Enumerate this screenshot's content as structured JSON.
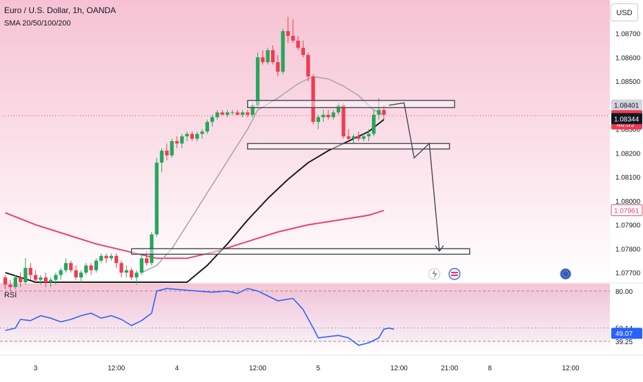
{
  "header": {
    "title": "Euro / U.S. Dollar, 1h, OANDA",
    "indicator": "SMA 20/50/100/200"
  },
  "currency_button": "USD",
  "rsi": {
    "label": "RSI"
  },
  "colors": {
    "background_top": "#f8c9d8",
    "background_mid": "#fbe3eb",
    "bull": "#26a65b",
    "bear": "#f23b52",
    "sma_gray": "#a8a8a8",
    "sma_black": "#1b1b1b",
    "sma_red": "#e8416a",
    "rsi_line": "#2962ff",
    "drawing": "#434651"
  },
  "chart_data": [
    {
      "type": "candlestick",
      "title": "Euro / U.S. Dollar, 1h, OANDA",
      "ylim": [
        1.0766,
        1.0884
      ],
      "y_ticks": [
        1.077,
        1.078,
        1.079,
        1.08,
        1.081,
        1.082,
        1.083,
        1.084,
        1.085,
        1.086,
        1.087
      ],
      "y_tick_labels": [
        "1.07700",
        "1.07800",
        "1.07900",
        "1.08000",
        "1.08100",
        "1.08200",
        "1.08300",
        "1.08400",
        "1.08500",
        "1.08600",
        "1.08700"
      ],
      "x_tick_labels": [
        "3",
        "12:00",
        "4",
        "12:00",
        "5",
        "12:00",
        "21:00",
        "8",
        "12:00"
      ],
      "x_tick_bars": [
        6,
        22,
        34,
        50,
        62,
        78,
        88,
        96,
        112
      ],
      "bar_count": 120,
      "price_labels": [
        {
          "value": 1.08401,
          "text": "1.08401",
          "kind": "gray"
        },
        {
          "value": 1.08356,
          "text": "1.08356",
          "kind": "bear",
          "countdown": "46:05"
        },
        {
          "value": 1.08344,
          "text": "1.08344",
          "kind": "dark"
        },
        {
          "value": 1.07961,
          "text": "1.07961",
          "kind": "red"
        }
      ],
      "candles": [
        [
          1.0768,
          1.0769,
          1.0763,
          1.0765
        ],
        [
          1.0765,
          1.0767,
          1.0762,
          1.0764
        ],
        [
          1.0764,
          1.0769,
          1.0763,
          1.0768
        ],
        [
          1.0768,
          1.077,
          1.0764,
          1.0766
        ],
        [
          1.0766,
          1.0776,
          1.0765,
          1.0772
        ],
        [
          1.0772,
          1.0774,
          1.0767,
          1.0769
        ],
        [
          1.0769,
          1.0771,
          1.0766,
          1.0767
        ],
        [
          1.0767,
          1.0769,
          1.0765,
          1.0768
        ],
        [
          1.0768,
          1.077,
          1.0764,
          1.0766
        ],
        [
          1.0766,
          1.0768,
          1.0764,
          1.0767
        ],
        [
          1.0767,
          1.077,
          1.0765,
          1.0769
        ],
        [
          1.0769,
          1.0772,
          1.0767,
          1.0771
        ],
        [
          1.0771,
          1.0776,
          1.077,
          1.0774
        ],
        [
          1.0774,
          1.0775,
          1.077,
          1.0771
        ],
        [
          1.0771,
          1.0773,
          1.0767,
          1.0768
        ],
        [
          1.0768,
          1.0771,
          1.0766,
          1.077
        ],
        [
          1.077,
          1.0774,
          1.0769,
          1.0773
        ],
        [
          1.0773,
          1.0774,
          1.0769,
          1.0771
        ],
        [
          1.0771,
          1.0776,
          1.077,
          1.0775
        ],
        [
          1.0775,
          1.0778,
          1.0774,
          1.0777
        ],
        [
          1.0777,
          1.0778,
          1.0774,
          1.0776
        ],
        [
          1.0776,
          1.0778,
          1.0775,
          1.0777
        ],
        [
          1.0777,
          1.0778,
          1.0772,
          1.0774
        ],
        [
          1.0774,
          1.0775,
          1.0768,
          1.077
        ],
        [
          1.077,
          1.0773,
          1.0768,
          1.0771
        ],
        [
          1.0771,
          1.0772,
          1.0767,
          1.0768
        ],
        [
          1.0768,
          1.0771,
          1.0765,
          1.077
        ],
        [
          1.077,
          1.0778,
          1.0769,
          1.0776
        ],
        [
          1.0776,
          1.0779,
          1.0773,
          1.0774
        ],
        [
          1.0774,
          1.0787,
          1.0773,
          1.0786
        ],
        [
          1.0786,
          1.0818,
          1.0785,
          1.0816
        ],
        [
          1.0816,
          1.0822,
          1.0812,
          1.0821
        ],
        [
          1.0821,
          1.0824,
          1.0817,
          1.0819
        ],
        [
          1.0819,
          1.0826,
          1.0818,
          1.0825
        ],
        [
          1.0825,
          1.0827,
          1.0822,
          1.0824
        ],
        [
          1.0824,
          1.0828,
          1.0822,
          1.0827
        ],
        [
          1.0827,
          1.0829,
          1.0825,
          1.0828
        ],
        [
          1.0828,
          1.0829,
          1.0825,
          1.0826
        ],
        [
          1.0826,
          1.0829,
          1.0825,
          1.0828
        ],
        [
          1.0828,
          1.083,
          1.0826,
          1.0829
        ],
        [
          1.0829,
          1.0834,
          1.0828,
          1.0833
        ],
        [
          1.0833,
          1.0836,
          1.0831,
          1.0835
        ],
        [
          1.0835,
          1.0838,
          1.0834,
          1.0837
        ],
        [
          1.0837,
          1.0838,
          1.0836,
          1.0836
        ],
        [
          1.0836,
          1.0838,
          1.0835,
          1.0837
        ],
        [
          1.0837,
          1.0838,
          1.0836,
          1.0837
        ],
        [
          1.0837,
          1.0838,
          1.0836,
          1.0836
        ],
        [
          1.0836,
          1.0838,
          1.0835,
          1.0837
        ],
        [
          1.0837,
          1.0838,
          1.0835,
          1.0836
        ],
        [
          1.0836,
          1.0841,
          1.0835,
          1.084
        ],
        [
          1.084,
          1.0862,
          1.0839,
          1.086
        ],
        [
          1.086,
          1.0863,
          1.0857,
          1.0858
        ],
        [
          1.0858,
          1.0864,
          1.0857,
          1.0863
        ],
        [
          1.0863,
          1.0865,
          1.0857,
          1.0858
        ],
        [
          1.0858,
          1.0861,
          1.0852,
          1.0854
        ],
        [
          1.0854,
          1.0872,
          1.0853,
          1.0871
        ],
        [
          1.0871,
          1.0877,
          1.0866,
          1.0869
        ],
        [
          1.0869,
          1.0876,
          1.0866,
          1.0867
        ],
        [
          1.0867,
          1.0869,
          1.0863,
          1.0864
        ],
        [
          1.0864,
          1.0867,
          1.086,
          1.0861
        ],
        [
          1.0861,
          1.0862,
          1.085,
          1.0852
        ],
        [
          1.0852,
          1.0853,
          1.0832,
          1.0833
        ],
        [
          1.0833,
          1.0836,
          1.083,
          1.0835
        ],
        [
          1.0835,
          1.0838,
          1.0833,
          1.0836
        ],
        [
          1.0836,
          1.0838,
          1.0834,
          1.0835
        ],
        [
          1.0835,
          1.0838,
          1.0834,
          1.0837
        ],
        [
          1.0837,
          1.0841,
          1.0836,
          1.084
        ],
        [
          1.084,
          1.0841,
          1.0826,
          1.0827
        ],
        [
          1.0827,
          1.083,
          1.0825,
          1.0826
        ],
        [
          1.0826,
          1.0828,
          1.0824,
          1.0827
        ],
        [
          1.0827,
          1.0829,
          1.0825,
          1.0826
        ],
        [
          1.0826,
          1.0828,
          1.0825,
          1.0827
        ],
        [
          1.0827,
          1.083,
          1.0825,
          1.0828
        ],
        [
          1.0828,
          1.0838,
          1.0827,
          1.0836
        ],
        [
          1.0836,
          1.0843,
          1.0834,
          1.0838
        ],
        [
          1.0838,
          1.084,
          1.0834,
          1.0836
        ]
      ],
      "sma_gray": [
        [
          27,
          1.077
        ],
        [
          30,
          1.0773
        ],
        [
          33,
          1.078
        ],
        [
          36,
          1.079
        ],
        [
          39,
          1.08
        ],
        [
          42,
          1.081
        ],
        [
          45,
          1.082
        ],
        [
          48,
          1.083
        ],
        [
          50,
          1.0838
        ],
        [
          54,
          1.0843
        ],
        [
          58,
          1.0849
        ],
        [
          61,
          1.0852
        ],
        [
          64,
          1.0851
        ],
        [
          67,
          1.0848
        ],
        [
          70,
          1.0844
        ],
        [
          73,
          1.0838
        ],
        [
          75,
          1.0836
        ]
      ],
      "sma_black": [
        [
          0,
          1.077
        ],
        [
          6,
          1.0766
        ],
        [
          36,
          1.0766
        ],
        [
          40,
          1.0773
        ],
        [
          44,
          1.0782
        ],
        [
          48,
          1.0792
        ],
        [
          52,
          1.0801
        ],
        [
          56,
          1.0809
        ],
        [
          60,
          1.0816
        ],
        [
          64,
          1.0821
        ],
        [
          68,
          1.0825
        ],
        [
          72,
          1.0829
        ],
        [
          75,
          1.0834
        ]
      ],
      "sma_red": [
        [
          0,
          1.0795
        ],
        [
          6,
          1.079
        ],
        [
          12,
          1.0786
        ],
        [
          18,
          1.0782
        ],
        [
          24,
          1.0779
        ],
        [
          30,
          1.0776
        ],
        [
          36,
          1.0776
        ],
        [
          42,
          1.0779
        ],
        [
          48,
          1.0783
        ],
        [
          54,
          1.0787
        ],
        [
          60,
          1.079
        ],
        [
          66,
          1.0792
        ],
        [
          72,
          1.0794
        ],
        [
          75,
          1.0796
        ]
      ],
      "zones": [
        {
          "bar_start": 48,
          "bar_end": 89,
          "y_low": 1.0839,
          "y_high": 1.0842
        },
        {
          "bar_start": 48,
          "bar_end": 88,
          "y_low": 1.08225,
          "y_high": 1.0824
        },
        {
          "bar_start": 25,
          "bar_end": 92,
          "y_low": 1.0778,
          "y_high": 1.078
        }
      ],
      "projection_path": [
        [
          76,
          1.084
        ],
        [
          79,
          1.0841
        ],
        [
          81,
          1.0818
        ],
        [
          84,
          1.0824
        ],
        [
          86,
          1.0779
        ]
      ]
    },
    {
      "type": "line",
      "title": "RSI",
      "ylim": [
        28,
        86
      ],
      "levels": [
        80,
        39.25
      ],
      "level_labels": [
        "80.00",
        "39.25"
      ],
      "extra_labels": [
        {
          "value": 50.14,
          "text": "50.14"
        }
      ],
      "current": {
        "value": 49.07,
        "text": "49.07"
      },
      "values": [
        [
          0,
          48
        ],
        [
          2,
          50
        ],
        [
          3,
          57
        ],
        [
          5,
          56
        ],
        [
          7,
          60
        ],
        [
          9,
          58
        ],
        [
          11,
          55
        ],
        [
          13,
          57
        ],
        [
          15,
          60
        ],
        [
          17,
          62
        ],
        [
          19,
          58
        ],
        [
          21,
          60
        ],
        [
          23,
          57
        ],
        [
          25,
          52
        ],
        [
          27,
          56
        ],
        [
          29,
          62
        ],
        [
          30,
          80
        ],
        [
          32,
          82
        ],
        [
          35,
          81
        ],
        [
          38,
          80
        ],
        [
          41,
          79
        ],
        [
          44,
          80
        ],
        [
          46,
          78
        ],
        [
          48,
          82
        ],
        [
          50,
          80
        ],
        [
          52,
          76
        ],
        [
          54,
          72
        ],
        [
          57,
          74
        ],
        [
          59,
          65
        ],
        [
          61,
          50
        ],
        [
          62,
          42
        ],
        [
          64,
          43
        ],
        [
          66,
          44
        ],
        [
          68,
          42
        ],
        [
          70,
          36
        ],
        [
          72,
          38
        ],
        [
          74,
          42
        ],
        [
          75,
          49
        ],
        [
          76,
          50
        ],
        [
          77,
          49
        ]
      ]
    }
  ]
}
